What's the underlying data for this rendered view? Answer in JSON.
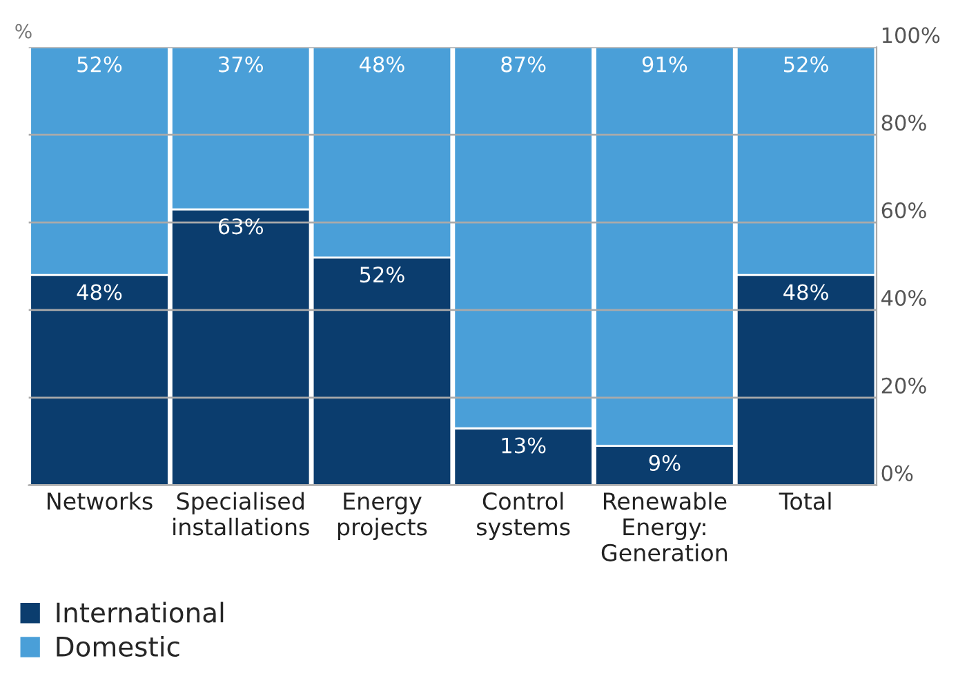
{
  "chart_data": {
    "type": "bar",
    "stacked": true,
    "ylabel": "%",
    "categories": [
      "Networks",
      "Specialised\ninstallations",
      "Energy\nprojects",
      "Control\nsystems",
      "Renewable\nEnergy:\nGeneration",
      "Total"
    ],
    "series": [
      {
        "name": "International",
        "color": "#0b3d6e",
        "values": [
          48,
          63,
          52,
          13,
          9,
          48
        ],
        "value_labels": [
          "48%",
          "63%",
          "52%",
          "13%",
          "9%",
          "48%"
        ]
      },
      {
        "name": "Domestic",
        "color": "#4a9fd8",
        "values": [
          52,
          37,
          48,
          87,
          91,
          52
        ],
        "value_labels": [
          "52%",
          "37%",
          "48%",
          "87%",
          "91%",
          "52%"
        ]
      }
    ],
    "ylim": [
      0,
      100
    ],
    "yticks": [
      {
        "value": 0,
        "label": "0%"
      },
      {
        "value": 20,
        "label": "20%"
      },
      {
        "value": 40,
        "label": "40%"
      },
      {
        "value": 60,
        "label": "60%"
      },
      {
        "value": 80,
        "label": "80%"
      },
      {
        "value": 100,
        "label": "100%"
      }
    ],
    "grid": "y",
    "legend": "bottom left"
  }
}
